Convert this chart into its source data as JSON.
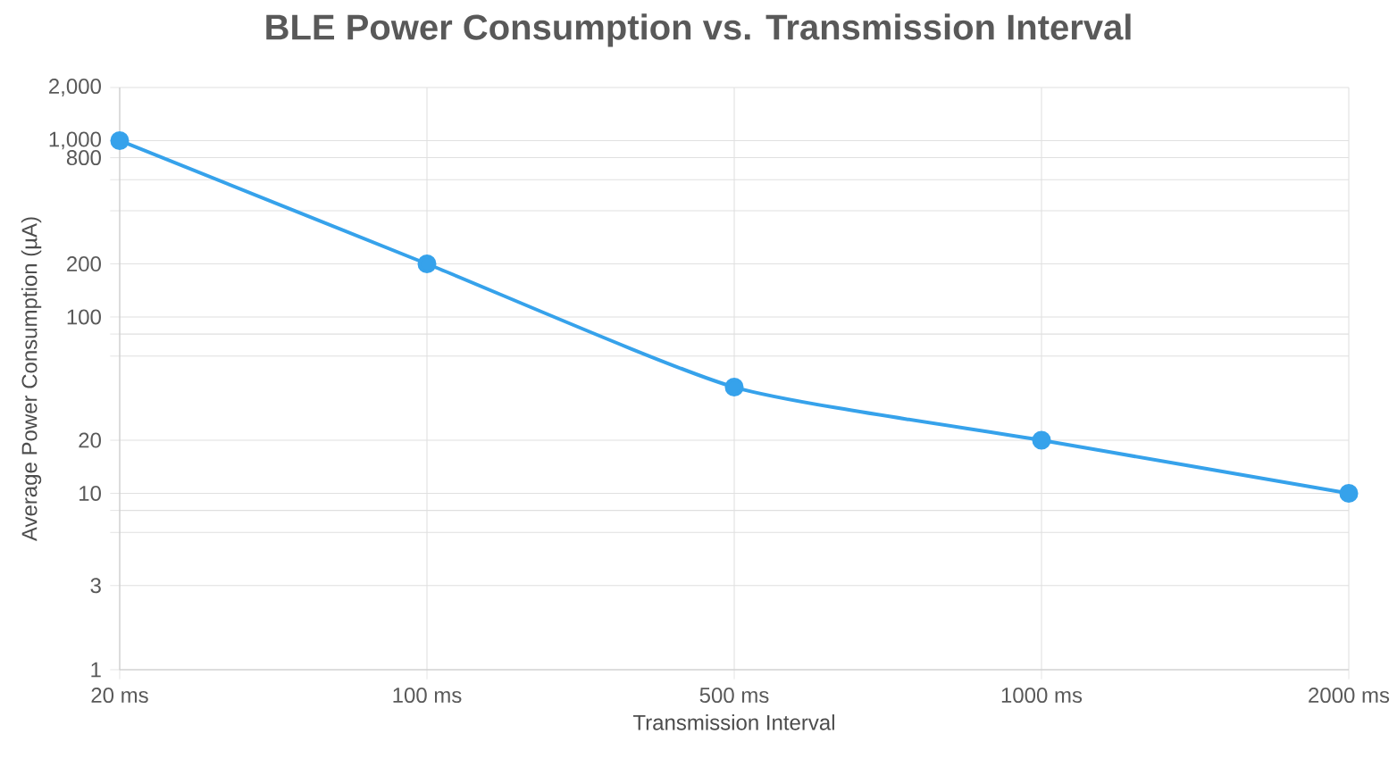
{
  "chart_data": {
    "type": "line",
    "title": "BLE Power Consumption vs. Transmission Interval",
    "xlabel": "Transmission Interval",
    "ylabel": "Average Power Consumption (µA)",
    "categories": [
      "20 ms",
      "100 ms",
      "500 ms",
      "1000 ms",
      "2000 ms"
    ],
    "series": [
      {
        "color": "#36a2eb",
        "values": [
          1000,
          200,
          40,
          20,
          10
        ]
      }
    ],
    "log": "y",
    "ylim": [
      1,
      2000
    ],
    "yticks": [
      1,
      3,
      {
        "value": 6,
        "label": null
      },
      {
        "value": 8,
        "label": null
      },
      10,
      20,
      {
        "value": 60,
        "label": null
      },
      {
        "value": 80,
        "label": null
      },
      100,
      200,
      {
        "value": 400,
        "label": null
      },
      {
        "value": 600,
        "label": null
      },
      {
        "value": 800,
        "label": "800"
      },
      {
        "value": 1000,
        "label": "1,000"
      },
      {
        "value": 2000,
        "label": "2,000"
      }
    ],
    "grid": true,
    "marker": "circle",
    "line_style": "solid"
  }
}
